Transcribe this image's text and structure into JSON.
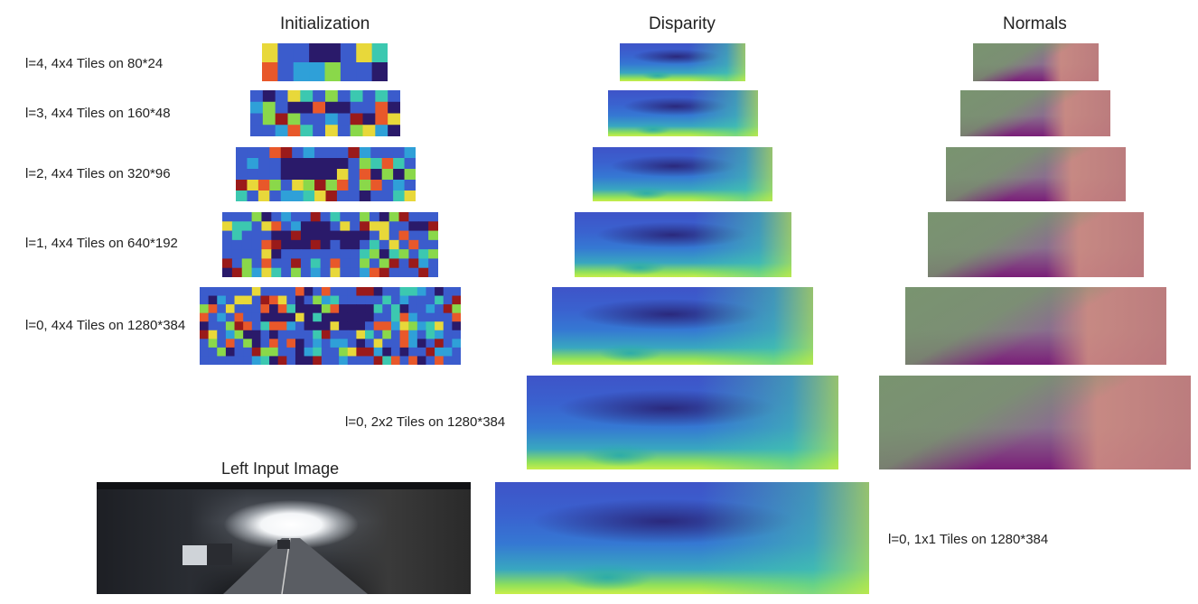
{
  "columns": {
    "initialization": "Initialization",
    "disparity": "Disparity",
    "normals": "Normals"
  },
  "rows": [
    {
      "label": "l=4, 4x4 Tiles on 80*24"
    },
    {
      "label": "l=3, 4x4 Tiles on 160*48"
    },
    {
      "label": "l=2, 4x4 Tiles on 320*96"
    },
    {
      "label": "l=1, 4x4 Tiles on 640*192"
    },
    {
      "label": "l=0, 4x4 Tiles on 1280*384"
    }
  ],
  "extra_rows": {
    "tiles_2x2": "l=0, 2x2 Tiles on 1280*384",
    "tiles_1x1": "l=0, 1x1 Tiles on 1280*384"
  },
  "input_image": {
    "title": "Left Input Image"
  },
  "colors": {
    "init_palette": [
      "#3b5ccc",
      "#2fa0d8",
      "#3cc8b0",
      "#8ad84a",
      "#e8d83a",
      "#e8582a",
      "#9a1a1a",
      "#2a1a6a"
    ]
  }
}
